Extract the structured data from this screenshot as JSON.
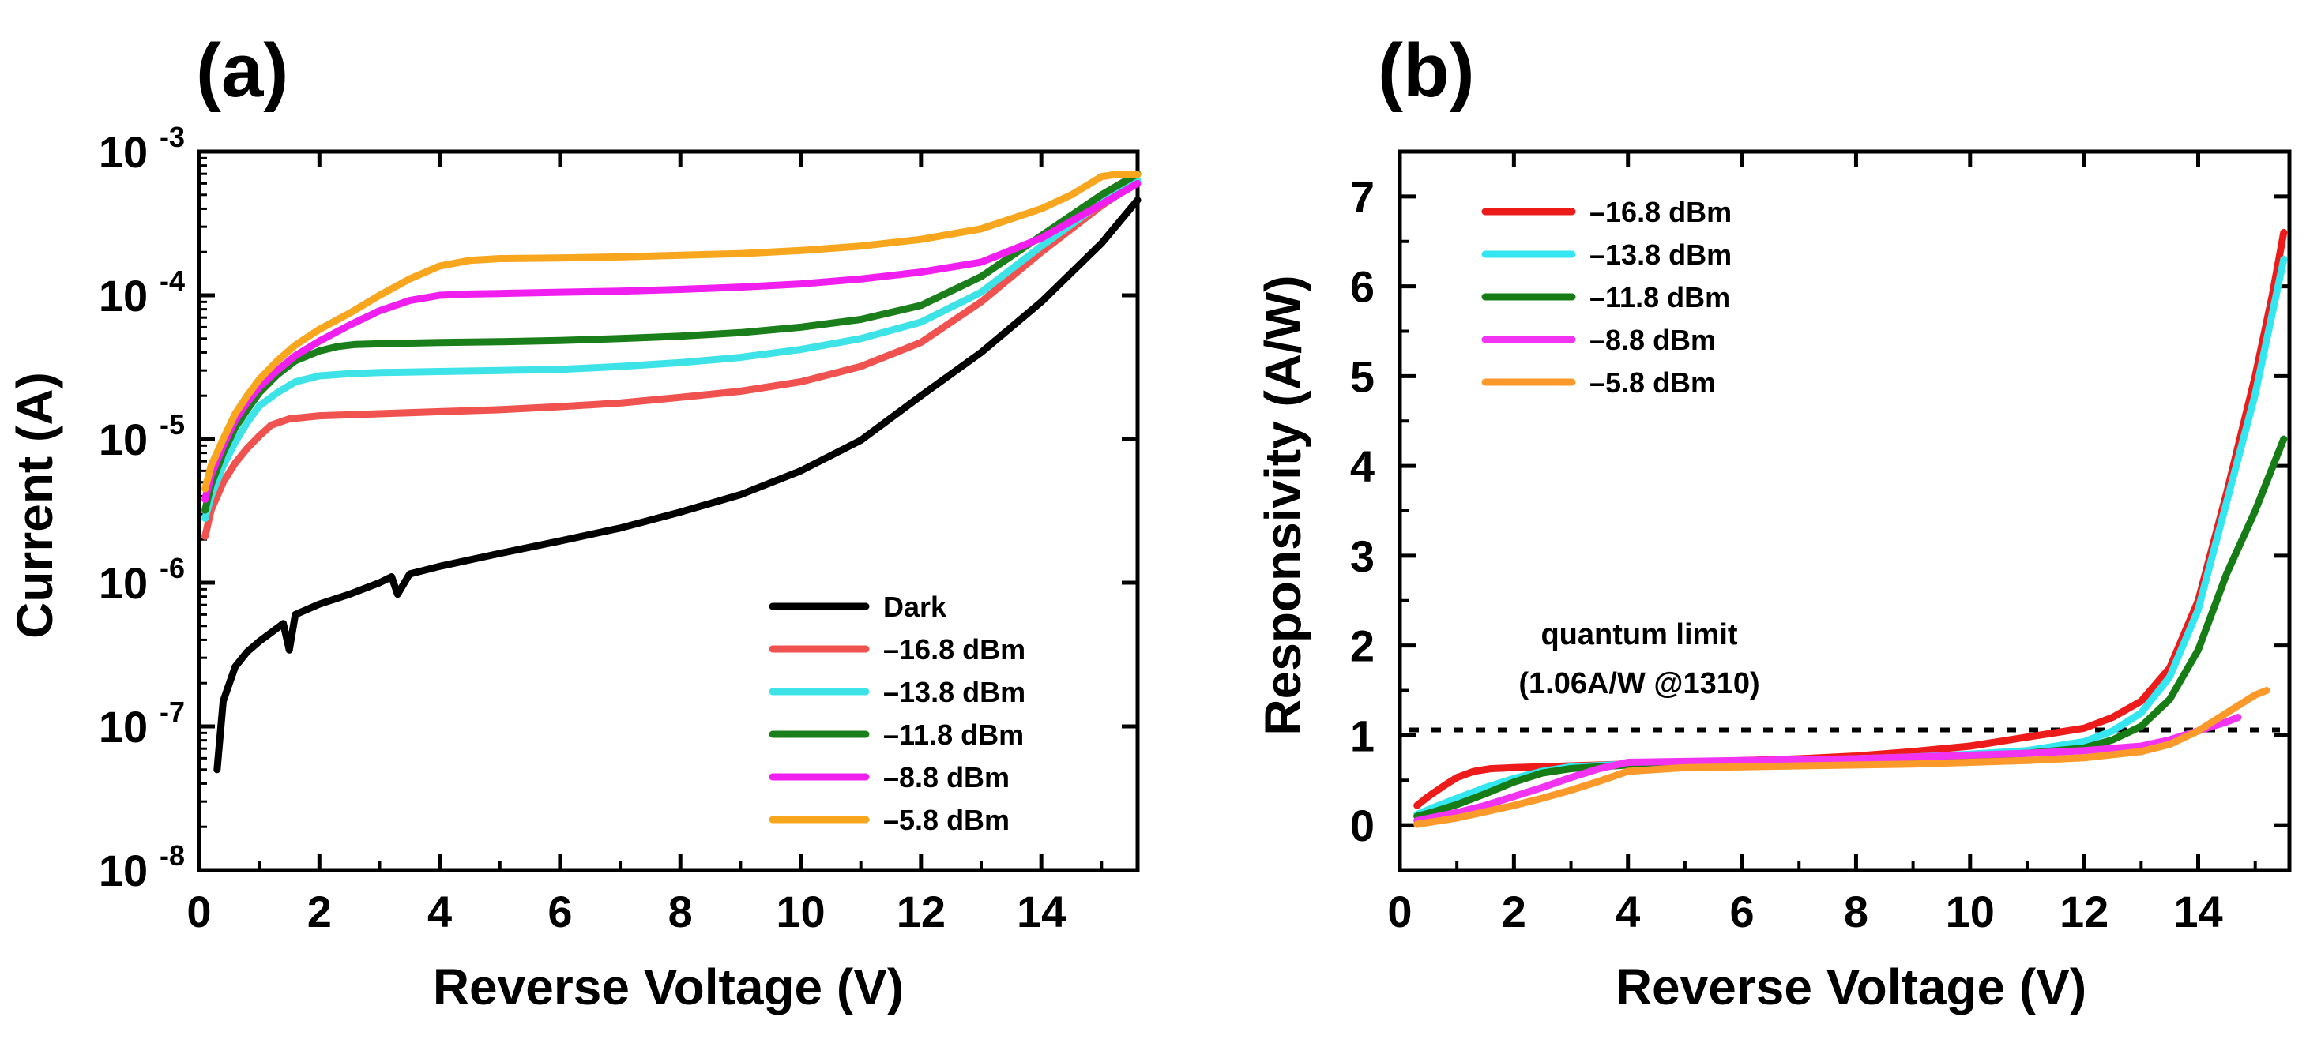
{
  "colors": {
    "dark": "#000000",
    "p16_8": "#f0524f",
    "p13_8": "#3ee3e8",
    "p11_8": "#1a7f1a",
    "p8_8": "#f01ff0",
    "p5_8": "#f7a61d",
    "b16_8": "#ee1b1b",
    "b13_8": "#33e6f0",
    "b11_8": "#167d16",
    "b8_8": "#f233f2",
    "b5_8": "#fb9a2a"
  },
  "chart_data": [
    {
      "id": "a",
      "panel_label": "(a)",
      "type": "line",
      "xlabel": "Reverse Voltage (V)",
      "ylabel": "Current (A)",
      "xlim": [
        0,
        15.6
      ],
      "ylim": [
        1e-08,
        0.001
      ],
      "yscale": "log",
      "xticks": [
        0,
        2,
        4,
        6,
        8,
        10,
        12,
        14
      ],
      "xtick_labels": [
        "0",
        "2",
        "4",
        "6",
        "8",
        "10",
        "12",
        "14"
      ],
      "yticks": [
        {
          "value": 1e-08,
          "base": "10",
          "exp": "-8"
        },
        {
          "value": 1e-07,
          "base": "10",
          "exp": "-7"
        },
        {
          "value": 1e-06,
          "base": "10",
          "exp": "-6"
        },
        {
          "value": 1e-05,
          "base": "10",
          "exp": "-5"
        },
        {
          "value": 0.0001,
          "base": "10",
          "exp": "-4"
        },
        {
          "value": 0.001,
          "base": "10",
          "exp": "-3"
        }
      ],
      "legend_position": "bottom-right",
      "series": [
        {
          "name": "Dark",
          "color_key": "dark",
          "x": [
            0.3,
            0.4,
            0.6,
            0.8,
            1.0,
            1.2,
            1.4,
            1.5,
            1.6,
            2.0,
            2.5,
            3.0,
            3.2,
            3.3,
            3.5,
            4.0,
            5.0,
            6.0,
            7.0,
            8.0,
            9.0,
            10.0,
            11.0,
            12.0,
            13.0,
            14.0,
            15.0,
            15.6
          ],
          "y": [
            5e-08,
            1.5e-07,
            2.6e-07,
            3.3e-07,
            3.9e-07,
            4.5e-07,
            5.2e-07,
            3.4e-07,
            6e-07,
            7.1e-07,
            8.3e-07,
            1e-06,
            1.1e-06,
            8.3e-07,
            1.15e-06,
            1.3e-06,
            1.6e-06,
            1.95e-06,
            2.4e-06,
            3.1e-06,
            4.1e-06,
            6e-06,
            9.8e-06,
            2e-05,
            4e-05,
            9e-05,
            0.00023,
            0.00046
          ]
        },
        {
          "name": "–16.8 dBm",
          "color_key": "p16_8",
          "x": [
            0.1,
            0.2,
            0.4,
            0.6,
            0.8,
            1.0,
            1.2,
            1.5,
            2,
            3,
            4,
            5,
            6,
            7,
            8,
            9,
            10,
            11,
            12,
            13,
            14,
            15,
            15.6
          ],
          "y": [
            2.1e-06,
            3.2e-06,
            5e-06,
            6.8e-06,
            8.6e-06,
            1.05e-05,
            1.25e-05,
            1.38e-05,
            1.45e-05,
            1.5e-05,
            1.55e-05,
            1.6e-05,
            1.68e-05,
            1.78e-05,
            1.95e-05,
            2.15e-05,
            2.5e-05,
            3.2e-05,
            4.7e-05,
            9e-05,
            0.0002,
            0.00042,
            0.00062
          ]
        },
        {
          "name": "–13.8 dBm",
          "color_key": "p13_8",
          "x": [
            0.1,
            0.2,
            0.4,
            0.6,
            0.8,
            1.0,
            1.3,
            1.6,
            2.0,
            2.5,
            3,
            4,
            5,
            6,
            7,
            8,
            9,
            10,
            11,
            12,
            13,
            14,
            15,
            15.6
          ],
          "y": [
            2.8e-06,
            4e-06,
            6.5e-06,
            9.5e-06,
            1.3e-05,
            1.7e-05,
            2.1e-05,
            2.5e-05,
            2.75e-05,
            2.85e-05,
            2.9e-05,
            2.95e-05,
            3e-05,
            3.05e-05,
            3.2e-05,
            3.4e-05,
            3.7e-05,
            4.2e-05,
            5e-05,
            6.5e-05,
            0.000105,
            0.00022,
            0.00044,
            0.00063
          ]
        },
        {
          "name": "–11.8 dBm",
          "color_key": "p11_8",
          "x": [
            0.1,
            0.2,
            0.4,
            0.6,
            0.8,
            1.0,
            1.3,
            1.6,
            2.0,
            2.3,
            2.6,
            3,
            4,
            5,
            6,
            7,
            8,
            9,
            10,
            11,
            12,
            13,
            14,
            15,
            15.6
          ],
          "y": [
            3.2e-06,
            4.8e-06,
            8e-06,
            1.2e-05,
            1.6e-05,
            2.1e-05,
            2.8e-05,
            3.5e-05,
            4.1e-05,
            4.4e-05,
            4.55e-05,
            4.6e-05,
            4.7e-05,
            4.75e-05,
            4.85e-05,
            5e-05,
            5.2e-05,
            5.5e-05,
            6e-05,
            6.8e-05,
            8.5e-05,
            0.000135,
            0.00026,
            0.0005,
            0.0007
          ]
        },
        {
          "name": "–8.8 dBm",
          "color_key": "p8_8",
          "x": [
            0.1,
            0.2,
            0.4,
            0.6,
            0.8,
            1.0,
            1.3,
            1.6,
            2.0,
            2.5,
            3.0,
            3.5,
            4.0,
            4.5,
            5,
            6,
            7,
            8,
            9,
            10,
            11,
            12,
            13,
            14,
            15,
            15.6
          ],
          "y": [
            3.8e-06,
            5.6e-06,
            9e-06,
            1.35e-05,
            1.8e-05,
            2.3e-05,
            3e-05,
            3.8e-05,
            4.8e-05,
            6.2e-05,
            7.8e-05,
            9.2e-05,
            0.0001,
            0.000102,
            0.000103,
            0.000105,
            0.000107,
            0.00011,
            0.000114,
            0.00012,
            0.00013,
            0.000145,
            0.00017,
            0.00025,
            0.00043,
            0.0006
          ]
        },
        {
          "name": "–5.8 dBm",
          "color_key": "p5_8",
          "x": [
            0.1,
            0.2,
            0.4,
            0.6,
            0.8,
            1.0,
            1.3,
            1.6,
            2.0,
            2.5,
            3.0,
            3.5,
            4.0,
            4.5,
            5,
            6,
            7,
            8,
            9,
            10,
            11,
            12,
            13,
            14,
            14.5,
            15.0,
            15.2,
            15.6
          ],
          "y": [
            4.5e-06,
            6.5e-06,
            1e-05,
            1.5e-05,
            2e-05,
            2.6e-05,
            3.5e-05,
            4.5e-05,
            5.8e-05,
            7.5e-05,
            0.0001,
            0.00013,
            0.00016,
            0.000175,
            0.00018,
            0.000182,
            0.000185,
            0.00019,
            0.000195,
            0.000205,
            0.00022,
            0.000245,
            0.00029,
            0.0004,
            0.0005,
            0.00067,
            0.00069,
            0.00069
          ]
        }
      ]
    },
    {
      "id": "b",
      "panel_label": "(b)",
      "type": "line",
      "xlabel": "Reverse Voltage (V)",
      "ylabel": "Responsivity (A/W)",
      "xlim": [
        0,
        15.6
      ],
      "ylim": [
        -0.5,
        7.5
      ],
      "yscale": "linear",
      "xticks": [
        0,
        2,
        4,
        6,
        8,
        10,
        12,
        14
      ],
      "xtick_labels": [
        "0",
        "2",
        "4",
        "6",
        "8",
        "10",
        "12",
        "14"
      ],
      "yticks": [
        0,
        1,
        2,
        3,
        4,
        5,
        6,
        7
      ],
      "ytick_labels": [
        "0",
        "1",
        "2",
        "3",
        "4",
        "5",
        "6",
        "7"
      ],
      "legend_position": "top-left",
      "reference_line": {
        "y": 1.06,
        "label_line1": "quantum limit",
        "label_line2": "(1.06A/W @1310)"
      },
      "series": [
        {
          "name": "–16.8 dBm",
          "color_key": "b16_8",
          "x": [
            0.3,
            0.5,
            0.8,
            1.0,
            1.3,
            1.6,
            2.0,
            3,
            4,
            5,
            6,
            7,
            8,
            9,
            10,
            11,
            11.5,
            12,
            12.5,
            13,
            13.5,
            14,
            14.5,
            15,
            15.3,
            15.5
          ],
          "y": [
            0.22,
            0.32,
            0.45,
            0.53,
            0.6,
            0.63,
            0.64,
            0.66,
            0.68,
            0.7,
            0.72,
            0.74,
            0.77,
            0.82,
            0.88,
            0.98,
            1.03,
            1.08,
            1.2,
            1.38,
            1.75,
            2.5,
            3.7,
            5.0,
            5.9,
            6.6
          ]
        },
        {
          "name": "–13.8 dBm",
          "color_key": "b13_8",
          "x": [
            0.3,
            0.6,
            1.0,
            1.5,
            2.0,
            2.5,
            3,
            4,
            5,
            6,
            7,
            8,
            9,
            10,
            11,
            12,
            12.5,
            13,
            13.5,
            14,
            14.5,
            15,
            15.5
          ],
          "y": [
            0.12,
            0.2,
            0.3,
            0.42,
            0.52,
            0.6,
            0.65,
            0.68,
            0.69,
            0.7,
            0.72,
            0.74,
            0.76,
            0.79,
            0.83,
            0.93,
            1.05,
            1.25,
            1.65,
            2.4,
            3.6,
            4.8,
            6.3
          ]
        },
        {
          "name": "–11.8 dBm",
          "color_key": "b11_8",
          "x": [
            0.3,
            0.6,
            1.0,
            1.5,
            2.0,
            2.5,
            3,
            4,
            5,
            6,
            7,
            8,
            9,
            10,
            11,
            12,
            12.5,
            13,
            13.5,
            14,
            14.5,
            15,
            15.5
          ],
          "y": [
            0.1,
            0.15,
            0.23,
            0.35,
            0.48,
            0.58,
            0.63,
            0.67,
            0.69,
            0.7,
            0.71,
            0.73,
            0.75,
            0.77,
            0.8,
            0.86,
            0.95,
            1.1,
            1.4,
            1.95,
            2.8,
            3.5,
            4.3
          ]
        },
        {
          "name": "–8.8 dBm",
          "color_key": "b8_8",
          "x": [
            0.3,
            0.6,
            1.0,
            1.5,
            2.0,
            2.5,
            3.0,
            3.5,
            4,
            5,
            6,
            7,
            8,
            9,
            10,
            11,
            12,
            13,
            13.5,
            14,
            14.5,
            14.7
          ],
          "y": [
            0.05,
            0.09,
            0.14,
            0.22,
            0.32,
            0.42,
            0.53,
            0.63,
            0.7,
            0.71,
            0.72,
            0.73,
            0.74,
            0.76,
            0.78,
            0.8,
            0.83,
            0.88,
            0.95,
            1.05,
            1.15,
            1.2
          ]
        },
        {
          "name": "–5.8 dBm",
          "color_key": "b5_8",
          "x": [
            0.3,
            0.6,
            1.0,
            1.5,
            2.0,
            2.5,
            3.0,
            3.5,
            4,
            5,
            6,
            7,
            8,
            9,
            10,
            11,
            12,
            13,
            13.5,
            14,
            14.5,
            15.0,
            15.2
          ],
          "y": [
            0.01,
            0.04,
            0.08,
            0.15,
            0.22,
            0.3,
            0.39,
            0.49,
            0.6,
            0.64,
            0.65,
            0.66,
            0.67,
            0.68,
            0.7,
            0.72,
            0.75,
            0.82,
            0.9,
            1.05,
            1.25,
            1.45,
            1.5
          ]
        }
      ]
    }
  ]
}
